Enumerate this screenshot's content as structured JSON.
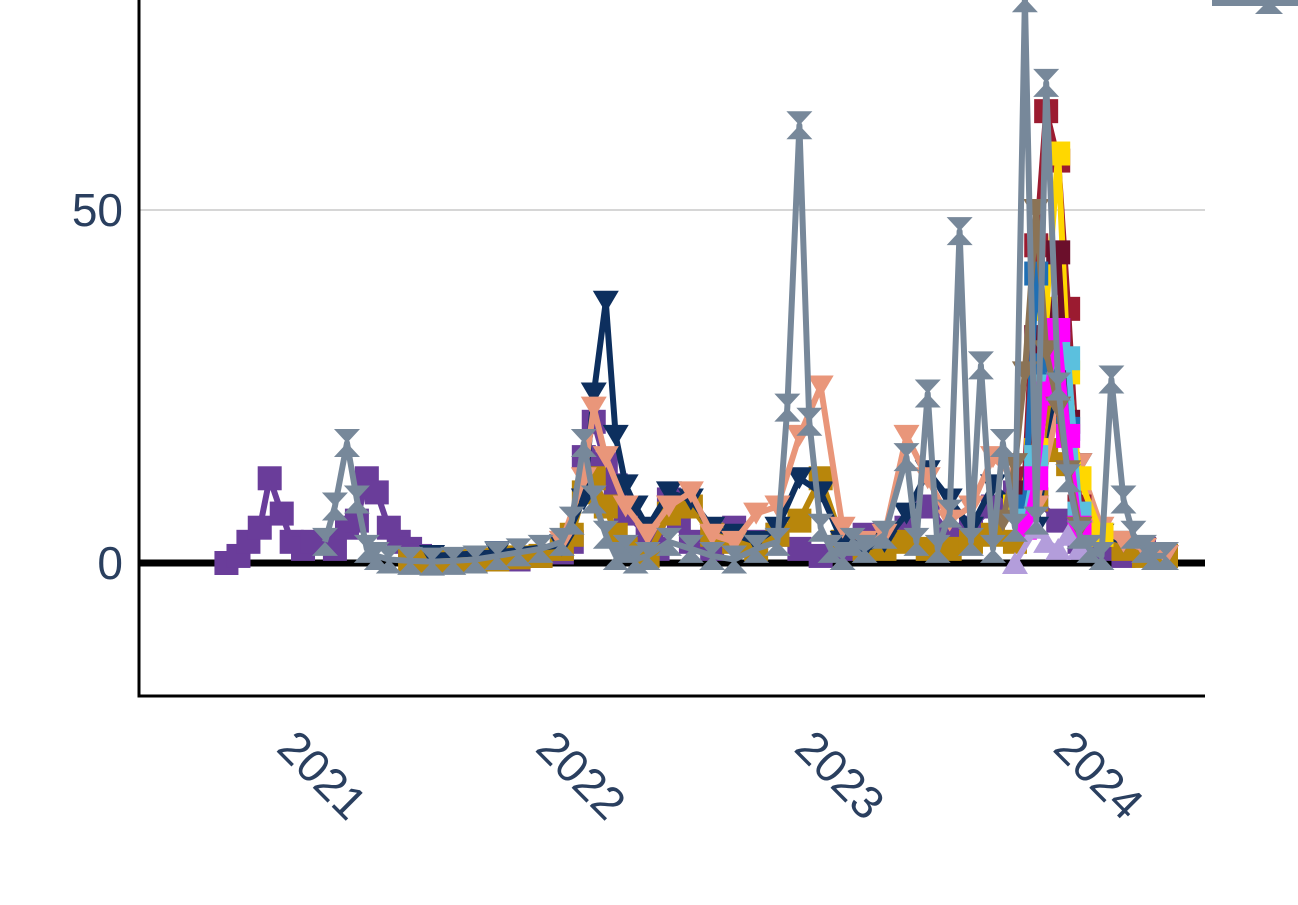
{
  "chart_data": {
    "type": "line",
    "title": "",
    "xlabel": "",
    "ylabel": "",
    "x_ticks": [
      "2021",
      "2022",
      "2023",
      "2024"
    ],
    "y_ticks": [
      "0",
      "50"
    ],
    "y_tick_values": [
      0,
      50
    ],
    "xlim": [
      "2020-07-01",
      "2024-07-01"
    ],
    "ylim": [
      -19,
      80
    ],
    "grid": true,
    "legend": "right (partially visible)",
    "series": [
      {
        "color": "#6a3d9a",
        "marker": "square",
        "x": [
          "2020-08-15",
          "2020-09-01",
          "2020-09-15",
          "2020-10-01",
          "2020-10-15",
          "2020-11-01",
          "2020-11-15",
          "2020-12-01",
          "2020-12-15",
          "2021-01-01",
          "2021-01-15",
          "2021-02-01",
          "2021-02-15",
          "2021-03-01",
          "2021-03-15",
          "2021-04-01",
          "2021-04-15",
          "2021-05-01",
          "2021-05-15",
          "2021-06-01",
          "2021-06-15",
          "2021-07-01",
          "2021-08-01",
          "2021-09-01",
          "2021-10-01",
          "2021-11-01",
          "2021-12-01",
          "2021-12-15",
          "2022-01-01",
          "2022-01-15",
          "2022-02-01",
          "2022-02-15",
          "2022-03-01",
          "2022-04-01",
          "2022-04-15",
          "2022-05-01",
          "2022-05-15",
          "2022-06-01",
          "2022-07-01",
          "2022-08-01",
          "2022-09-01",
          "2022-10-01",
          "2022-11-01",
          "2022-12-01",
          "2023-01-01",
          "2023-02-01",
          "2023-03-01",
          "2023-04-01",
          "2023-05-01",
          "2023-06-01",
          "2023-07-01",
          "2023-08-01",
          "2023-09-01",
          "2023-10-01",
          "2023-11-01",
          "2023-12-01",
          "2024-01-01",
          "2024-02-01",
          "2024-03-01",
          "2024-04-01"
        ],
        "y": [
          0,
          1,
          3,
          5,
          12,
          7,
          3,
          2,
          3,
          3,
          2,
          5,
          6,
          12,
          10,
          5,
          3,
          2,
          1,
          0.5,
          0.5,
          0.3,
          0.3,
          0.5,
          0.5,
          1,
          1.5,
          3,
          15,
          20,
          14,
          11,
          7,
          4,
          2,
          9,
          6,
          3,
          2,
          5,
          3,
          4,
          2,
          1,
          2,
          4,
          3,
          5,
          8,
          4,
          5,
          8,
          10,
          9,
          6,
          3,
          2,
          1,
          2,
          1
        ]
      },
      {
        "color": "#b8860b",
        "marker": "square",
        "x": [
          "2021-05-01",
          "2021-06-01",
          "2021-07-01",
          "2021-08-01",
          "2021-09-01",
          "2021-10-01",
          "2021-11-01",
          "2021-12-01",
          "2021-12-15",
          "2022-01-01",
          "2022-01-15",
          "2022-02-01",
          "2022-02-15",
          "2022-03-01",
          "2022-04-01",
          "2022-05-01",
          "2022-06-01",
          "2022-07-01",
          "2022-08-01",
          "2022-09-01",
          "2022-10-01",
          "2022-11-01",
          "2022-12-01",
          "2023-01-01",
          "2023-02-01",
          "2023-03-01",
          "2023-04-01",
          "2023-05-01",
          "2023-06-01",
          "2023-07-01",
          "2023-08-01",
          "2023-09-01",
          "2023-10-01",
          "2023-10-15",
          "2023-11-01",
          "2023-11-15",
          "2023-12-01",
          "2024-01-01",
          "2024-02-01",
          "2024-03-01",
          "2024-04-01"
        ],
        "y": [
          0.5,
          0.3,
          0.2,
          0.3,
          0.5,
          0.8,
          1,
          2,
          4,
          10,
          12,
          8,
          4,
          2,
          1,
          7,
          8,
          4,
          3,
          2,
          4,
          6,
          12,
          3,
          2,
          2,
          3,
          2,
          2,
          3,
          4,
          3,
          9,
          16,
          35,
          14,
          8,
          4,
          2,
          1,
          1
        ]
      },
      {
        "color": "#0d2f5e",
        "marker": "triangle-down",
        "x": [
          "2021-06-01",
          "2021-09-01",
          "2021-12-01",
          "2022-01-01",
          "2022-01-15",
          "2022-02-01",
          "2022-02-15",
          "2022-03-01",
          "2022-03-15",
          "2022-04-01",
          "2022-05-01",
          "2022-06-01",
          "2022-07-01",
          "2022-08-01",
          "2022-09-01",
          "2022-10-01",
          "2022-11-01",
          "2022-12-01",
          "2023-01-01",
          "2023-02-01",
          "2023-03-01",
          "2023-04-01",
          "2023-05-01",
          "2023-06-01",
          "2023-07-01",
          "2023-08-01",
          "2023-09-01",
          "2023-10-01",
          "2023-11-01",
          "2023-12-01",
          "2024-01-01",
          "2024-02-01",
          "2024-03-01",
          "2024-04-01"
        ],
        "y": [
          1,
          1.5,
          2.5,
          9,
          24,
          37,
          18,
          11,
          8,
          5,
          10,
          9,
          5,
          4,
          3,
          5,
          12,
          10,
          3,
          2,
          3,
          7,
          13,
          9,
          5,
          11,
          8,
          5,
          26,
          14,
          4,
          3,
          2,
          1
        ]
      },
      {
        "color": "#e9967a",
        "marker": "triangle-down",
        "x": [
          "2021-12-01",
          "2022-01-01",
          "2022-01-15",
          "2022-02-01",
          "2022-03-01",
          "2022-04-01",
          "2022-05-01",
          "2022-06-01",
          "2022-07-01",
          "2022-08-01",
          "2022-09-01",
          "2022-10-01",
          "2022-11-01",
          "2022-12-01",
          "2023-01-01",
          "2023-02-01",
          "2023-03-01",
          "2023-04-01",
          "2023-05-01",
          "2023-06-01",
          "2023-07-01",
          "2023-08-01",
          "2023-09-01",
          "2023-10-01",
          "2023-11-01",
          "2023-12-01",
          "2024-01-01",
          "2024-02-01",
          "2024-03-01",
          "2024-04-01"
        ],
        "y": [
          3,
          12,
          22,
          15,
          8,
          4,
          8,
          10,
          4,
          3,
          7,
          8,
          18,
          25,
          5,
          3,
          4,
          18,
          12,
          6,
          8,
          15,
          12,
          8,
          22,
          14,
          5,
          3,
          2,
          1
        ]
      },
      {
        "color": "#9b1b30",
        "marker": "square",
        "x": [
          "2023-09-15",
          "2023-10-01",
          "2023-10-15",
          "2023-11-01",
          "2023-11-15",
          "2023-12-01"
        ],
        "y": [
          12,
          45,
          64,
          57,
          36,
          8
        ]
      },
      {
        "color": "#ffd700",
        "marker": "square",
        "x": [
          "2023-09-01",
          "2023-10-01",
          "2023-10-15",
          "2023-11-01",
          "2023-11-15",
          "2023-12-01",
          "2024-01-01"
        ],
        "y": [
          8,
          16,
          36,
          58,
          27,
          12,
          4
        ]
      },
      {
        "color": "#6b0f2b",
        "marker": "square",
        "x": [
          "2023-09-15",
          "2023-10-01",
          "2023-10-15",
          "2023-11-01",
          "2023-11-15",
          "2023-12-01"
        ],
        "y": [
          10,
          32,
          24,
          44,
          20,
          6
        ]
      },
      {
        "color": "#1f6fb4",
        "marker": "square",
        "x": [
          "2023-09-15",
          "2023-10-01",
          "2023-10-15",
          "2023-11-01",
          "2023-11-15",
          "2023-12-01"
        ],
        "y": [
          8,
          41,
          28,
          33,
          19,
          5
        ]
      },
      {
        "color": "#5bc0de",
        "marker": "square",
        "x": [
          "2023-09-15",
          "2023-10-01",
          "2023-10-15",
          "2023-11-01",
          "2023-11-15",
          "2023-12-01"
        ],
        "y": [
          6,
          15,
          25,
          31,
          29,
          7
        ]
      },
      {
        "color": "#ff00ff",
        "marker": "square",
        "x": [
          "2023-09-15",
          "2023-10-01",
          "2023-10-15",
          "2023-11-01",
          "2023-11-15",
          "2023-12-01"
        ],
        "y": [
          5,
          12,
          24,
          33,
          18,
          5
        ]
      },
      {
        "color": "#b39ddb",
        "marker": "triangle-up",
        "x": [
          "2023-09-01",
          "2023-10-01",
          "2023-10-15",
          "2023-11-01",
          "2023-11-15",
          "2023-12-01"
        ],
        "y": [
          0,
          5,
          3,
          2,
          4,
          2
        ]
      },
      {
        "color": "#8b7355",
        "marker": "triangle-down",
        "x": [
          "2023-08-15",
          "2023-09-01",
          "2023-09-15",
          "2023-10-01",
          "2023-10-15",
          "2023-11-01",
          "2023-11-15",
          "2023-12-01"
        ],
        "y": [
          6,
          14,
          27,
          50,
          30,
          22,
          13,
          5
        ]
      },
      {
        "color": "#77889a",
        "marker": "triangle-updown",
        "x": [
          "2021-01-01",
          "2021-01-15",
          "2021-02-01",
          "2021-02-15",
          "2021-03-01",
          "2021-03-15",
          "2021-04-01",
          "2021-05-01",
          "2021-06-01",
          "2021-07-01",
          "2021-08-01",
          "2021-09-01",
          "2021-10-01",
          "2021-11-01",
          "2021-12-01",
          "2021-12-15",
          "2022-01-01",
          "2022-01-15",
          "2022-02-01",
          "2022-02-15",
          "2022-03-01",
          "2022-03-15",
          "2022-04-01",
          "2022-05-01",
          "2022-06-01",
          "2022-07-01",
          "2022-08-01",
          "2022-09-01",
          "2022-10-01",
          "2022-10-15",
          "2022-11-01",
          "2022-11-15",
          "2022-12-01",
          "2022-12-15",
          "2023-01-01",
          "2023-01-15",
          "2023-02-01",
          "2023-03-01",
          "2023-04-01",
          "2023-04-15",
          "2023-05-01",
          "2023-05-15",
          "2023-06-01",
          "2023-06-15",
          "2023-07-01",
          "2023-07-15",
          "2023-08-01",
          "2023-08-15",
          "2023-09-01",
          "2023-09-15",
          "2023-10-01",
          "2023-10-15",
          "2023-11-01",
          "2023-11-15",
          "2023-12-01",
          "2023-12-15",
          "2024-01-01",
          "2024-01-15",
          "2024-02-01",
          "2024-02-15",
          "2024-03-01",
          "2024-03-15",
          "2024-04-01"
        ],
        "y": [
          3,
          8,
          17,
          9,
          2,
          1,
          0.5,
          0.3,
          0.2,
          0.3,
          0.5,
          1,
          1.5,
          2,
          3,
          6,
          17,
          9,
          4,
          1,
          2,
          0.5,
          1,
          3,
          2,
          1,
          0.5,
          2,
          3,
          22,
          62,
          20,
          5,
          2,
          1,
          3,
          2,
          4,
          15,
          3,
          24,
          2,
          7,
          47,
          3,
          28,
          2,
          17,
          5,
          80,
          6,
          68,
          25,
          12,
          4,
          2,
          1,
          26,
          9,
          4,
          2,
          1,
          1
        ]
      }
    ]
  }
}
